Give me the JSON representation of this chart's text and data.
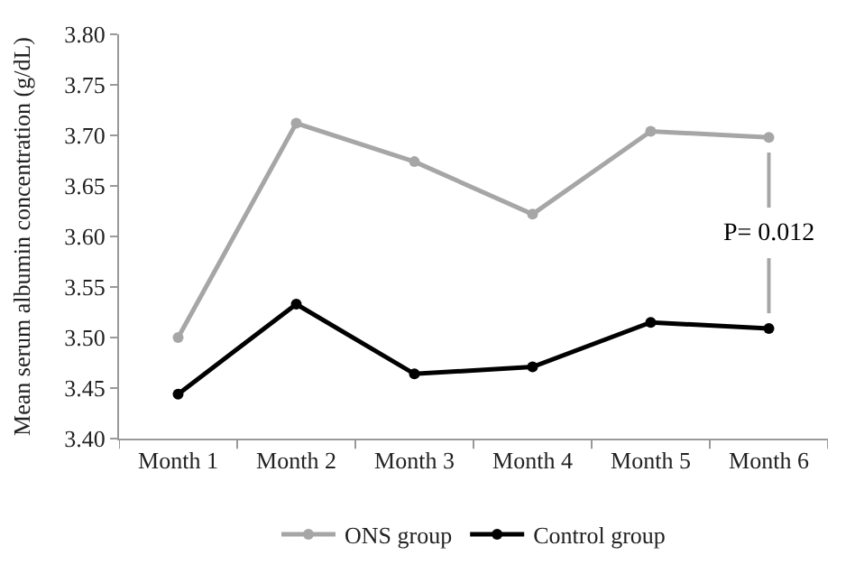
{
  "chart_data": {
    "type": "line",
    "ylabel": "Mean serum albumin concentration (g/dL)",
    "categories": [
      "Month 1",
      "Month 2",
      "Month 3",
      "Month 4",
      "Month 5",
      "Month 6"
    ],
    "series": [
      {
        "name": "ONS group",
        "color": "#a6a6a6",
        "values": [
          3.5,
          3.712,
          3.674,
          3.622,
          3.704,
          3.698
        ]
      },
      {
        "name": "Control group",
        "color": "#000000",
        "values": [
          3.444,
          3.533,
          3.464,
          3.471,
          3.515,
          3.509
        ]
      }
    ],
    "ylim": [
      3.4,
      3.8
    ],
    "yticks": [
      {
        "value": 3.4,
        "label": "3.40"
      },
      {
        "value": 3.45,
        "label": "3.45"
      },
      {
        "value": 3.5,
        "label": "3.50"
      },
      {
        "value": 3.55,
        "label": "3.55"
      },
      {
        "value": 3.6,
        "label": "3.60"
      },
      {
        "value": 3.65,
        "label": "3.65"
      },
      {
        "value": 3.7,
        "label": "3.70"
      },
      {
        "value": 3.75,
        "label": "3.75"
      },
      {
        "value": 3.8,
        "label": "3.80"
      }
    ],
    "annotations": [
      "P= 0.012"
    ],
    "legend": "bottom",
    "marker": "circle",
    "line_style": "solid"
  }
}
